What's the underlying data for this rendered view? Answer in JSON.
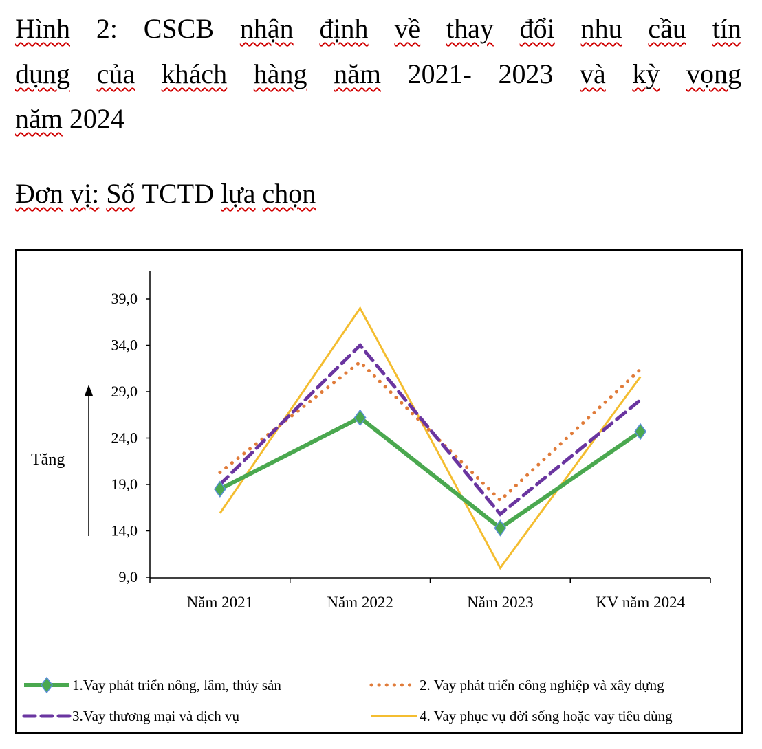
{
  "title_lines": [
    "Hình 2: CSCB nhận định về thay đổi nhu cầu tín",
    "dụng của khách hàng năm 2021- 2023 và kỳ vọng",
    "năm 2024"
  ],
  "unit_line": "Đơn vị: Số TCTD lựa chọn",
  "chart_data": {
    "type": "line",
    "title": "Hình 2: CSCB nhận định về thay đổi nhu cầu tín dụng của khách hàng năm 2021- 2023 và kỳ vọng năm 2024",
    "ylabel": "Tăng",
    "xlabel": "",
    "categories": [
      "Năm 2021",
      "Năm 2022",
      "Năm 2023",
      "KV năm 2024"
    ],
    "ylim": [
      9,
      42
    ],
    "yticks": [
      9,
      14,
      19,
      24,
      29,
      34,
      39
    ],
    "ytick_labels": [
      "9,0",
      "14,0",
      "19,0",
      "24,0",
      "29,0",
      "34,0",
      "39,0"
    ],
    "grid": false,
    "legend_position": "bottom",
    "series": [
      {
        "name": "1.Vay phát triển nông, lâm, thủy sản",
        "values": [
          18.5,
          26.2,
          14.3,
          24.7
        ],
        "color": "#4aa84f",
        "style": "solid-marker"
      },
      {
        "name": "2. Vay phát triển công nghiệp và xây dựng",
        "values": [
          20.3,
          32.2,
          17.3,
          31.4
        ],
        "color": "#e07b39",
        "style": "dotted"
      },
      {
        "name": "3.Vay thương mại và dịch vụ",
        "values": [
          19.0,
          34.0,
          15.8,
          28.1
        ],
        "color": "#6a35a0",
        "style": "dashed"
      },
      {
        "name": "4. Vay phục vụ đời sống hoặc vay tiêu dùng",
        "values": [
          15.9,
          38.0,
          10.0,
          30.6
        ],
        "color": "#f4bd30",
        "style": "thin"
      }
    ]
  }
}
